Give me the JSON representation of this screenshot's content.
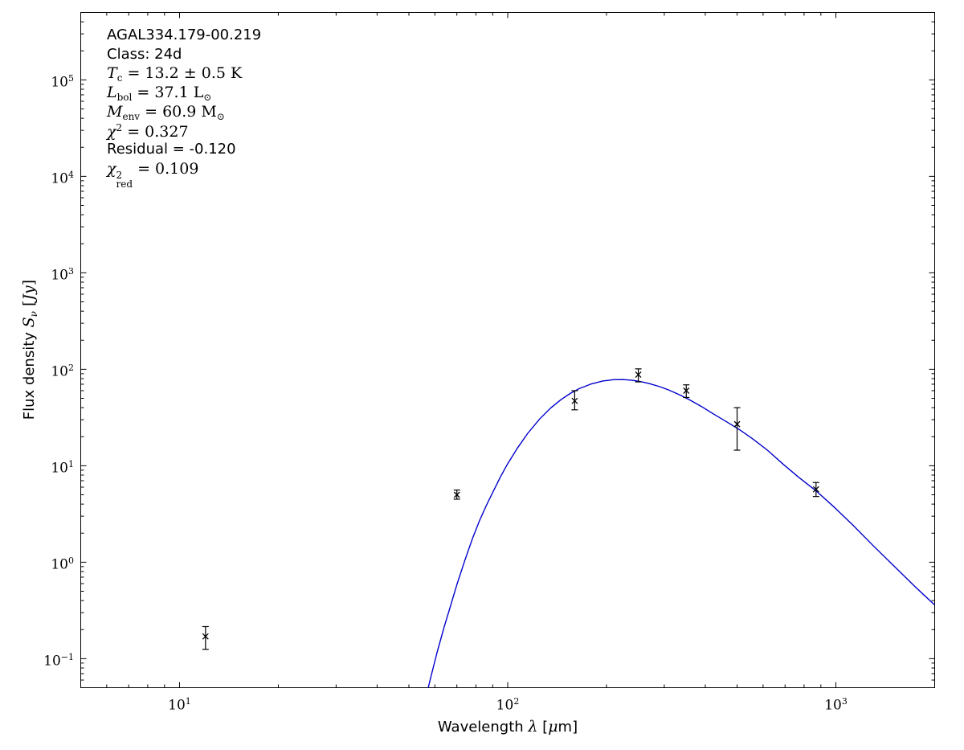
{
  "figure": {
    "background": "#ffffff",
    "frame_color": "#000000"
  },
  "chart_data": {
    "type": "scatter",
    "title": "",
    "x_scale": "log",
    "y_scale": "log",
    "xlim": [
      5,
      2000
    ],
    "ylim": [
      0.05,
      500000
    ],
    "x_major_tick_exponents": [
      1,
      2,
      3
    ],
    "y_major_tick_exponents": [
      -1,
      0,
      1,
      2,
      3,
      4,
      5
    ],
    "grid": "off",
    "x_label_segments": [
      {
        "t": "Wavelength ",
        "s": "sans"
      },
      {
        "t": "λ",
        "s": "it"
      },
      {
        "t": " [",
        "s": "sans"
      },
      {
        "t": "μ",
        "s": "it"
      },
      {
        "t": "m]",
        "s": "sans"
      }
    ],
    "y_label_segments": [
      {
        "t": "Flux density ",
        "s": "sans"
      },
      {
        "t": "S",
        "s": "it"
      },
      {
        "t": "ν",
        "s": "subit"
      },
      {
        "t": " [",
        "s": "rm"
      },
      {
        "t": "Jy",
        "s": "it"
      },
      {
        "t": "]",
        "s": "rm"
      }
    ],
    "series": [
      {
        "name": "photometry",
        "type": "scatter",
        "marker": "x",
        "color": "#000000",
        "points": [
          {
            "x": 12,
            "y": 0.17,
            "y_lo": 0.125,
            "y_hi": 0.215
          },
          {
            "x": 70,
            "y": 5.0,
            "y_lo": 4.5,
            "y_hi": 5.6
          },
          {
            "x": 160,
            "y": 47,
            "y_lo": 38,
            "y_hi": 60
          },
          {
            "x": 250,
            "y": 88,
            "y_lo": 74,
            "y_hi": 101
          },
          {
            "x": 350,
            "y": 60,
            "y_lo": 51,
            "y_hi": 69
          },
          {
            "x": 500,
            "y": 27,
            "y_lo": 14.5,
            "y_hi": 40
          },
          {
            "x": 870,
            "y": 5.7,
            "y_lo": 4.8,
            "y_hi": 6.7
          }
        ]
      },
      {
        "name": "greybody_fit",
        "type": "line",
        "color": "#0000cc",
        "x": [
          55,
          58,
          61,
          64,
          67,
          70,
          74,
          78,
          82,
          86,
          90,
          95,
          100,
          107,
          115,
          125,
          135,
          145,
          155,
          165,
          180,
          195,
          210,
          225,
          240,
          255,
          270,
          290,
          310,
          335,
          360,
          390,
          425,
          465,
          510,
          560,
          620,
          690,
          770,
          870,
          990,
          1130,
          1300,
          1500,
          1750,
          2000
        ],
        "y": [
          0.028,
          0.06,
          0.118,
          0.212,
          0.355,
          0.585,
          1.04,
          1.74,
          2.68,
          3.85,
          5.28,
          7.65,
          10.5,
          15.2,
          21.6,
          30.4,
          39.5,
          48.2,
          56.1,
          63.0,
          70.6,
          75.6,
          78.0,
          78.2,
          76.9,
          74.4,
          71.1,
          66.2,
          60.9,
          54.1,
          47.8,
          41.0,
          34.2,
          28.5,
          23.5,
          18.8,
          14.4,
          10.4,
          7.6,
          5.5,
          3.7,
          2.4,
          1.48,
          0.92,
          0.55,
          0.36
        ]
      }
    ],
    "annotation": {
      "lines": [
        {
          "segments": [
            {
              "t": "AGAL334.179-00.219",
              "s": "sans"
            }
          ]
        },
        {
          "segments": [
            {
              "t": "Class: 24d",
              "s": "sans"
            }
          ]
        },
        {
          "segments": [
            {
              "t": "T",
              "s": "it"
            },
            {
              "t": "c",
              "s": "sub"
            },
            {
              "t": " = 13.2 ± 0.5 K",
              "s": "rm"
            }
          ]
        },
        {
          "segments": [
            {
              "t": "L",
              "s": "it"
            },
            {
              "t": "bol",
              "s": "sub"
            },
            {
              "t": " = 37.1 L",
              "s": "rm"
            },
            {
              "t": "⊙",
              "s": "sub"
            }
          ]
        },
        {
          "segments": [
            {
              "t": "M",
              "s": "it"
            },
            {
              "t": "env",
              "s": "sub"
            },
            {
              "t": " = 60.9 M",
              "s": "rm"
            },
            {
              "t": "⊙",
              "s": "sub"
            }
          ]
        },
        {
          "segments": [
            {
              "t": "χ",
              "s": "it"
            },
            {
              "t": "2",
              "s": "sup"
            },
            {
              "t": " = 0.327",
              "s": "rm"
            }
          ]
        },
        {
          "segments": [
            {
              "t": "Residual = -0.120",
              "s": "sans"
            }
          ]
        },
        {
          "segments": [
            {
              "t": "χ",
              "s": "it"
            },
            {
              "t": "2",
              "s": "stack",
              "b": "red"
            },
            {
              "t": " = 0.109",
              "s": "rm"
            }
          ]
        }
      ]
    }
  }
}
